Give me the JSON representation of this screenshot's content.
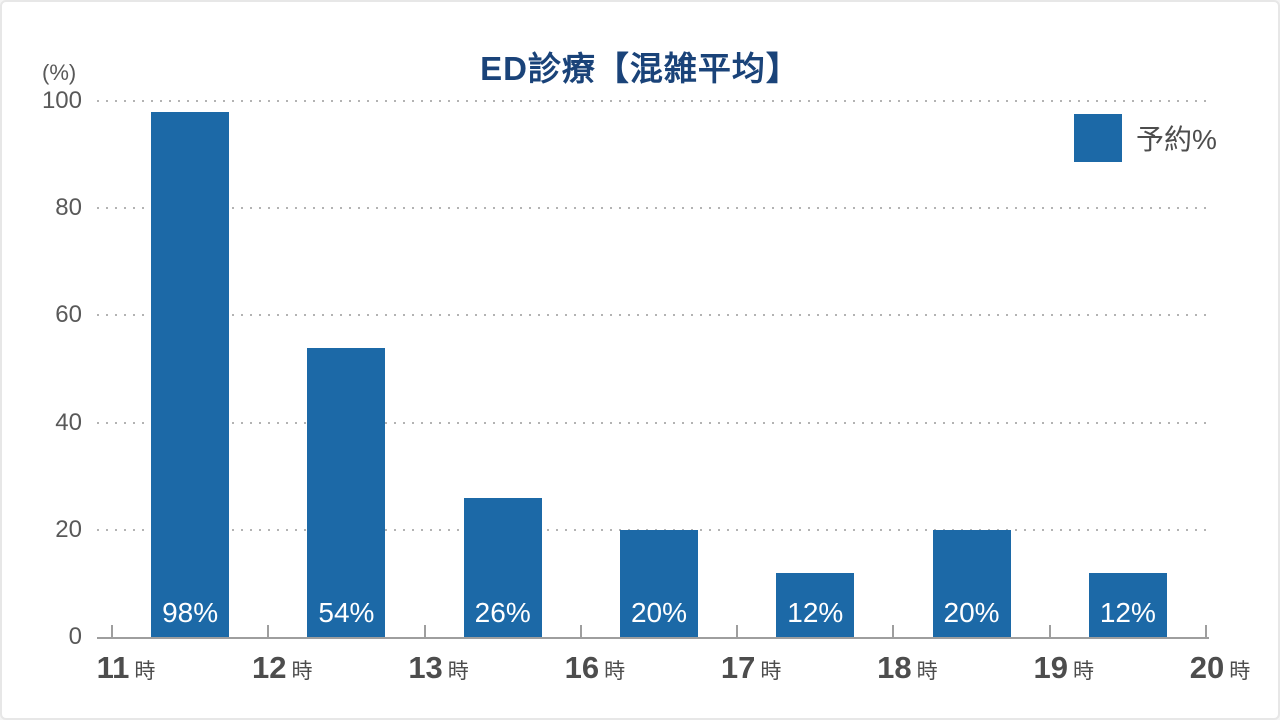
{
  "page": {
    "background": "#ffffff",
    "border_color": "#e7e7e7"
  },
  "chart_data": {
    "type": "bar",
    "title": "ED診療【混雑平均】",
    "y_unit_label": "(%)",
    "xlabel": "",
    "ylabel": "(%)",
    "ylim": [
      0,
      100
    ],
    "y_ticks": [
      0,
      20,
      40,
      60,
      80,
      100
    ],
    "x_boundary_labels": [
      "11時",
      "12時",
      "13時",
      "16時",
      "17時",
      "18時",
      "19時",
      "20時"
    ],
    "x_hours": [
      "11",
      "12",
      "13",
      "16",
      "17",
      "18",
      "19",
      "20"
    ],
    "x_unit": "時",
    "series": [
      {
        "name": "予約%",
        "values": [
          98,
          54,
          26,
          20,
          12,
          20,
          12
        ],
        "bar_labels": [
          "98%",
          "54%",
          "26%",
          "20%",
          "12%",
          "20%",
          "12%"
        ]
      }
    ],
    "grid": "dotted-horizontal",
    "legend_position": "top-right"
  },
  "legend": {
    "label": "予約%"
  },
  "colors": {
    "title": "#1a4379",
    "bar": "#1c69a7",
    "bar_label": "#ffffff",
    "axis": "#9e9e9e",
    "grid_dot": "#b3b3b3",
    "y_tick_label": "#595959",
    "x_tick_label": "#4d4d4d"
  }
}
